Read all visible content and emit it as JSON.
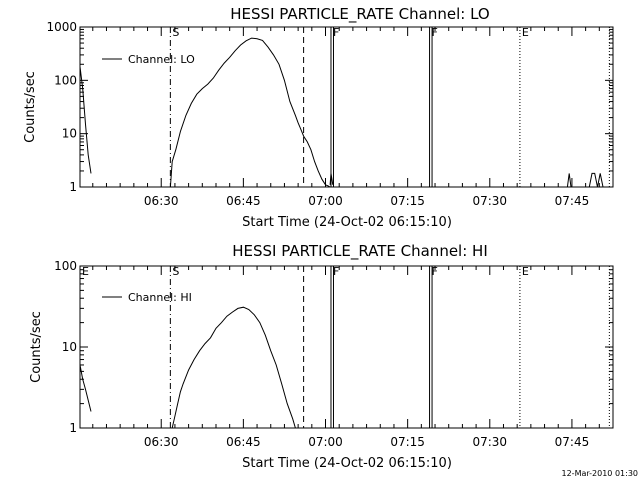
{
  "footer": {
    "timestamp": "12-Mar-2010 01:30"
  },
  "chart_data": [
    {
      "type": "line",
      "title": "HESSI PARTICLE_RATE Channel: LO",
      "xlabel": "Start Time (24-Oct-02 06:15:10)",
      "ylabel": "Counts/sec",
      "y_scale": "log",
      "xlim": [
        "06:15:10",
        "07:52:30"
      ],
      "ylim": [
        1,
        1000
      ],
      "x_tick_labels": [
        "06:30",
        "06:45",
        "07:00",
        "07:15",
        "07:30",
        "07:45"
      ],
      "y_tick_labels": [
        "1",
        "10",
        "100",
        "1000"
      ],
      "legend": {
        "position": "top-left",
        "entries": [
          "Channel: LO"
        ]
      },
      "markers": [
        {
          "label": "S",
          "time": "06:31:40",
          "style": "dash-dot"
        },
        {
          "label": "",
          "time": "06:56:00",
          "style": "dashed"
        },
        {
          "label": "F",
          "time": "07:01:00",
          "style": "solid"
        },
        {
          "label": "F",
          "time": "07:19:00",
          "style": "solid"
        },
        {
          "label": "E",
          "time": "07:35:30",
          "style": "dotted"
        },
        {
          "label": "",
          "time": "07:51:50",
          "style": "dotted"
        }
      ],
      "series": [
        {
          "name": "Channel: LO",
          "segments": [
            {
              "x": [
                "06:15:10",
                "06:15:40",
                "06:16:10",
                "06:16:40",
                "06:17:10"
              ],
              "y": [
                180,
                70,
                15,
                4,
                1.8
              ]
            },
            {
              "x": [
                "06:31:40",
                "06:32:00",
                "06:32:40",
                "06:33:30",
                "06:34:30",
                "06:35:30",
                "06:36:30",
                "06:37:30",
                "06:38:30",
                "06:39:30",
                "06:40:30",
                "06:41:30",
                "06:42:30",
                "06:43:30",
                "06:44:30",
                "06:45:30",
                "06:46:30",
                "06:47:30",
                "06:48:30",
                "06:49:30",
                "06:50:30",
                "06:51:30",
                "06:52:30",
                "06:53:30",
                "06:54:30",
                "06:55:00",
                "06:55:30",
                "06:56:00",
                "06:56:40",
                "06:57:20",
                "06:58:00",
                "06:58:40",
                "06:59:20",
                "07:00:00",
                "07:00:30",
                "07:00:50"
              ],
              "y": [
                1,
                3,
                5,
                11,
                22,
                37,
                55,
                70,
                85,
                110,
                155,
                210,
                270,
                360,
                460,
                550,
                620,
                600,
                560,
                420,
                300,
                200,
                100,
                40,
                22,
                16,
                12,
                9,
                7,
                5,
                3,
                2,
                1.4,
                1.1,
                1.05,
                1
              ]
            },
            {
              "x": [
                "07:00:50",
                "07:01:00",
                "07:01:20"
              ],
              "y": [
                1.1,
                1.8,
                1.1
              ]
            },
            {
              "x": [
                "07:44:10",
                "07:44:30",
                "07:44:50"
              ],
              "y": [
                1,
                1.8,
                1
              ]
            },
            {
              "x": [
                "07:48:10",
                "07:48:40",
                "07:49:10",
                "07:49:40",
                "07:50:10",
                "07:50:40"
              ],
              "y": [
                1,
                1.8,
                1.8,
                1,
                1.8,
                1
              ]
            }
          ]
        }
      ]
    },
    {
      "type": "line",
      "title": "HESSI PARTICLE_RATE Channel: HI",
      "xlabel": "Start Time (24-Oct-02 06:15:10)",
      "ylabel": "Counts/sec",
      "y_scale": "log",
      "xlim": [
        "06:15:10",
        "07:52:30"
      ],
      "ylim": [
        1,
        100
      ],
      "x_tick_labels": [
        "06:30",
        "06:45",
        "07:00",
        "07:15",
        "07:30",
        "07:45"
      ],
      "y_tick_labels": [
        "1",
        "10",
        "100"
      ],
      "legend": {
        "position": "top-left",
        "entries": [
          "Channel: HI"
        ]
      },
      "markers": [
        {
          "label": "E",
          "time": "06:15:10",
          "style": "none"
        },
        {
          "label": "S",
          "time": "06:31:40",
          "style": "dash-dot"
        },
        {
          "label": "",
          "time": "06:56:00",
          "style": "dashed"
        },
        {
          "label": "F",
          "time": "07:01:00",
          "style": "solid"
        },
        {
          "label": "F",
          "time": "07:19:00",
          "style": "solid"
        },
        {
          "label": "E",
          "time": "07:35:30",
          "style": "dotted"
        },
        {
          "label": "",
          "time": "07:51:50",
          "style": "dotted"
        }
      ],
      "series": [
        {
          "name": "Channel: HI",
          "segments": [
            {
              "x": [
                "06:15:10",
                "06:15:40",
                "06:16:10",
                "06:16:40",
                "06:17:10"
              ],
              "y": [
                6,
                4,
                3,
                2.2,
                1.6
              ]
            },
            {
              "x": [
                "06:32:00",
                "06:32:30",
                "06:33:00",
                "06:33:30",
                "06:34:00",
                "06:35:00",
                "06:36:00",
                "06:37:00",
                "06:38:00",
                "06:39:00",
                "06:40:00",
                "06:41:00",
                "06:42:00",
                "06:43:00",
                "06:44:00",
                "06:45:00",
                "06:46:00",
                "06:47:00",
                "06:48:00",
                "06:49:00",
                "06:50:00",
                "06:51:00",
                "06:52:00",
                "06:53:00",
                "06:54:00",
                "06:54:30"
              ],
              "y": [
                1,
                1.4,
                2,
                2.8,
                3.5,
                5.2,
                7,
                9,
                11,
                13,
                17,
                20,
                24,
                27,
                30,
                31,
                29,
                25,
                20,
                14,
                9,
                6,
                3.5,
                2,
                1.3,
                1
              ]
            }
          ]
        }
      ]
    }
  ]
}
